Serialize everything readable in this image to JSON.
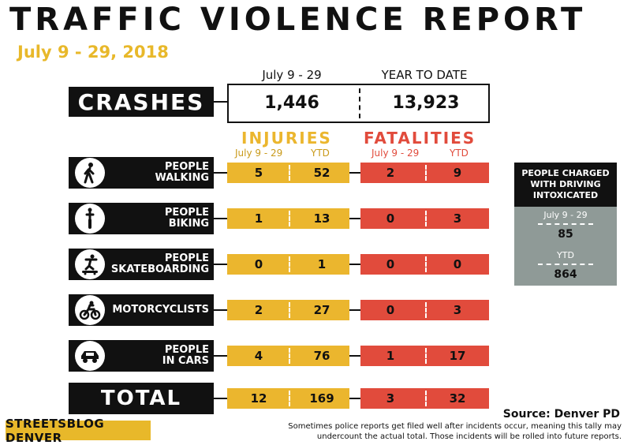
{
  "header": {
    "title": "TRAFFIC VIOLENCE REPORT",
    "date_range": "July 9 - 29, 2018"
  },
  "crashes": {
    "label": "CRASHES",
    "period_label": "July 9 - 29",
    "ytd_label": "YEAR TO DATE",
    "period_value": "1,446",
    "ytd_value": "13,923"
  },
  "sections": {
    "injuries": "INJURIES",
    "fatalities": "FATALITIES",
    "period_sub": "July 9 - 29",
    "ytd_sub": "YTD"
  },
  "rows": [
    {
      "label_line1": "PEOPLE",
      "label_line2": "WALKING",
      "icon": "pedestrian-icon",
      "inj_period": "5",
      "inj_ytd": "52",
      "fat_period": "2",
      "fat_ytd": "9"
    },
    {
      "label_line1": "PEOPLE",
      "label_line2": "BIKING",
      "icon": "cyclist-icon",
      "inj_period": "1",
      "inj_ytd": "13",
      "fat_period": "0",
      "fat_ytd": "3"
    },
    {
      "label_line1": "PEOPLE",
      "label_line2": "SKATEBOARDING",
      "icon": "skateboarder-icon",
      "inj_period": "0",
      "inj_ytd": "1",
      "fat_period": "0",
      "fat_ytd": "0"
    },
    {
      "label_line1": "MOTORCYCLISTS",
      "label_line2": "",
      "icon": "motorcycle-icon",
      "inj_period": "2",
      "inj_ytd": "27",
      "fat_period": "0",
      "fat_ytd": "3"
    },
    {
      "label_line1": "PEOPLE",
      "label_line2": "IN CARS",
      "icon": "car-icon",
      "inj_period": "4",
      "inj_ytd": "76",
      "fat_period": "1",
      "fat_ytd": "17"
    }
  ],
  "total": {
    "label": "TOTAL",
    "inj_period": "12",
    "inj_ytd": "169",
    "fat_period": "3",
    "fat_ytd": "32"
  },
  "dui_panel": {
    "heading_line1": "PEOPLE CHARGED",
    "heading_line2": "WITH DRIVING",
    "heading_line3": "INTOXICATED",
    "period_label": "July 9 - 29",
    "period_value": "85",
    "ytd_label": "YTD",
    "ytd_value": "864"
  },
  "footer": {
    "source": "Source: Denver PD",
    "note": "Sometimes police reports get filed well after incidents occur, meaning this tally may undercount the actual total. Those incidents will be rolled into future reports.",
    "logo": "STREETSBLOG DENVER"
  },
  "colors": {
    "injuries": "#ebb62e",
    "fatalities": "#e14b3c",
    "panel": "#8f9a97",
    "date": "#e8b82a"
  }
}
